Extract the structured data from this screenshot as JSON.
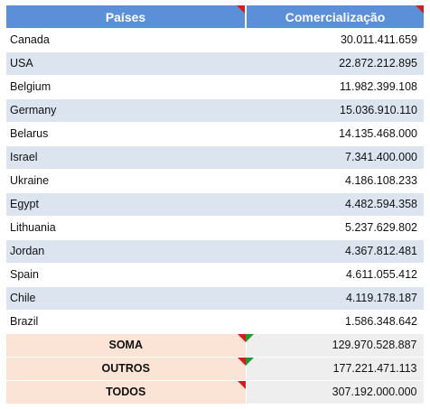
{
  "header": {
    "col_country": "Países",
    "col_value": "Comercialização"
  },
  "rows": [
    {
      "country": "Canada",
      "value": "30.011.411.659"
    },
    {
      "country": "USA",
      "value": "22.872.212.895"
    },
    {
      "country": "Belgium",
      "value": "11.982.399.108"
    },
    {
      "country": "Germany",
      "value": "15.036.910.110"
    },
    {
      "country": "Belarus",
      "value": "14.135.468.000"
    },
    {
      "country": "Israel",
      "value": "7.341.400.000"
    },
    {
      "country": "Ukraine",
      "value": "4.186.108.233"
    },
    {
      "country": "Egypt",
      "value": "4.482.594.358"
    },
    {
      "country": "Lithuania",
      "value": "5.237.629.802"
    },
    {
      "country": "Jordan",
      "value": "4.367.812.481"
    },
    {
      "country": "Spain",
      "value": "4.611.055.412"
    },
    {
      "country": "Chile",
      "value": "4.119.178.187"
    },
    {
      "country": "Brazil",
      "value": "1.586.348.642"
    }
  ],
  "summary": [
    {
      "label": "SOMA",
      "value": "129.970.528.887"
    },
    {
      "label": "OUTROS",
      "value": "177.221.471.113"
    },
    {
      "label": "TODOS",
      "value": "307.192.000.000"
    }
  ],
  "colors": {
    "header_bg": "#5b8fd8",
    "alt_row_bg": "#dce4f0",
    "summary_label_bg": "#fbe4d6",
    "summary_value_bg": "#eeeeee",
    "comment_marker": "#d81b1b",
    "green_marker": "#1e9a2c"
  }
}
